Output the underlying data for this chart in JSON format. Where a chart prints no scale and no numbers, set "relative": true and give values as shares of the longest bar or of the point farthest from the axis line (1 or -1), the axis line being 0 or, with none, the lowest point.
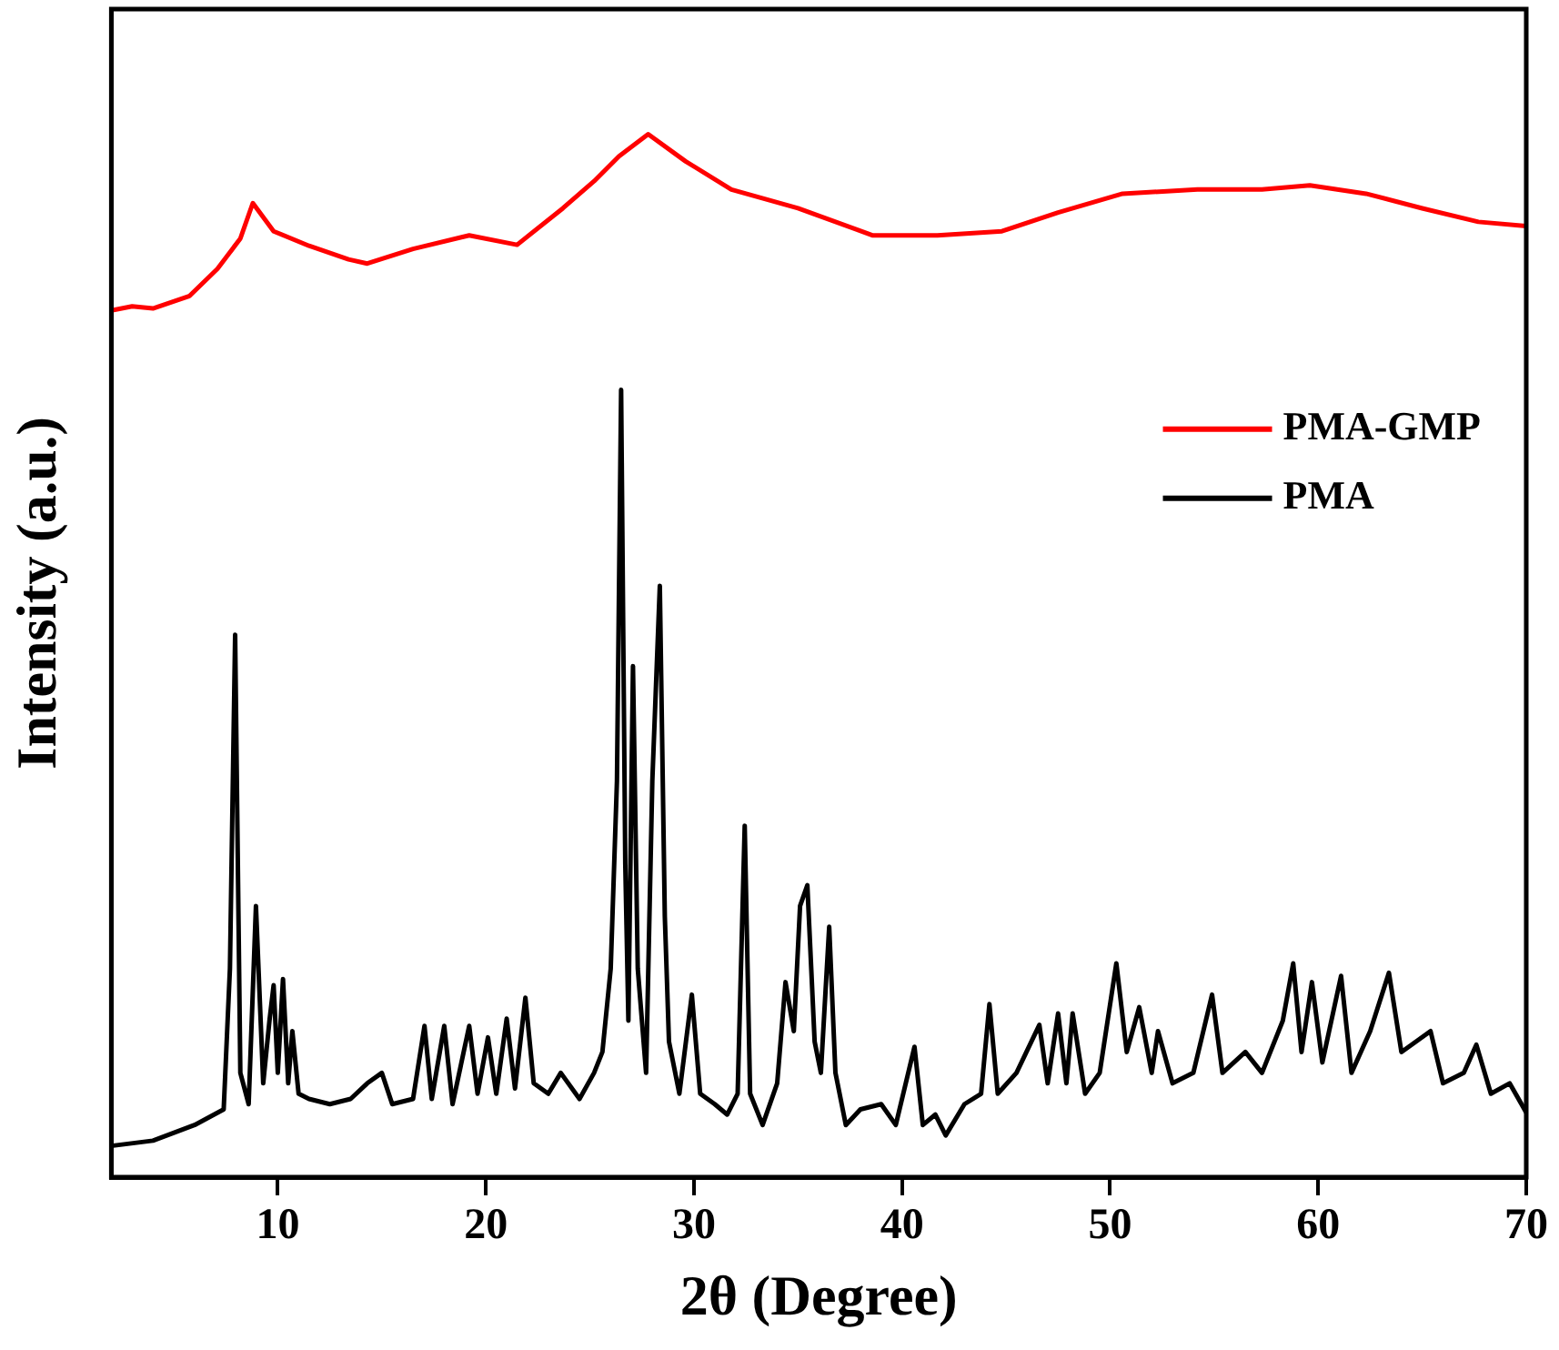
{
  "chart_data": {
    "type": "line",
    "xlabel": "2θ (Degree)",
    "ylabel": "Intensity (a.u.)",
    "relative": true,
    "xlim": [
      2,
      70
    ],
    "xticks": [
      10,
      20,
      30,
      40,
      50,
      60,
      70
    ],
    "legend": "top right",
    "grid": false,
    "marker": "none",
    "line_style": "solid",
    "series": [
      {
        "name": "PMA-GMP",
        "color": "#ff0000",
        "x": [
          2,
          3,
          4,
          5.76,
          7.1,
          8.2,
          8.8,
          9.8,
          11.5,
          13.4,
          14.3,
          16.5,
          19.2,
          21.5,
          23.7,
          25.2,
          26.4,
          27.8,
          29.6,
          31.8,
          35,
          38.6,
          41.7,
          44.8,
          47.5,
          50.6,
          54.2,
          57.3,
          59.6,
          62.3,
          65,
          67.7,
          70
        ],
        "values": [
          0.831,
          0.835,
          0.833,
          0.845,
          0.871,
          0.9,
          0.934,
          0.907,
          0.893,
          0.88,
          0.876,
          0.89,
          0.903,
          0.894,
          0.929,
          0.955,
          0.979,
          1,
          0.974,
          0.947,
          0.929,
          0.903,
          0.903,
          0.907,
          0.925,
          0.943,
          0.947,
          0.947,
          0.951,
          0.943,
          0.929,
          0.916,
          0.912
        ]
      },
      {
        "name": "PMA",
        "color": "#000000",
        "x": [
          2,
          4,
          6,
          7.4,
          7.7,
          7.95,
          8.2,
          8.6,
          8.95,
          9.3,
          9.6,
          9.8,
          10.0,
          10.25,
          10.5,
          10.7,
          11,
          11.5,
          12.5,
          13.5,
          14.3,
          15,
          15.5,
          16.5,
          17.05,
          17.4,
          18,
          18.4,
          19.2,
          19.6,
          20.1,
          20.5,
          21,
          21.4,
          21.9,
          22.3,
          23,
          23.6,
          24.5,
          25.2,
          25.6,
          26.0,
          26.3,
          26.5,
          26.7,
          26.85,
          27.07,
          27.3,
          27.7,
          28.0,
          28.36,
          28.6,
          28.8,
          29.3,
          29.9,
          30.3,
          31,
          31.6,
          32.1,
          32.44,
          32.7,
          33.3,
          34,
          34.4,
          34.8,
          35.1,
          35.45,
          35.8,
          36.1,
          36.5,
          36.8,
          37.3,
          38,
          39,
          39.7,
          40.6,
          41,
          41.6,
          42.1,
          43,
          43.8,
          44.2,
          44.6,
          45.5,
          46.6,
          47,
          47.5,
          47.9,
          48.2,
          48.8,
          49.5,
          50.3,
          50.8,
          51.4,
          52,
          52.3,
          53,
          54,
          54.9,
          55.4,
          56.5,
          57.3,
          58.3,
          58.8,
          59.2,
          59.7,
          60.2,
          61.1,
          61.6,
          62.5,
          63.4,
          64,
          65.4,
          66,
          67,
          67.6,
          68.3,
          69.2,
          70
        ],
        "values": [
          0.03,
          0.035,
          0.05,
          0.065,
          0.2,
          0.52,
          0.1,
          0.07,
          0.26,
          0.09,
          0.15,
          0.184,
          0.1,
          0.19,
          0.09,
          0.14,
          0.08,
          0.075,
          0.07,
          0.075,
          0.09,
          0.1,
          0.07,
          0.075,
          0.145,
          0.075,
          0.145,
          0.07,
          0.145,
          0.08,
          0.134,
          0.08,
          0.152,
          0.085,
          0.172,
          0.09,
          0.08,
          0.1,
          0.075,
          0.1,
          0.12,
          0.2,
          0.38,
          0.755,
          0.3,
          0.15,
          0.49,
          0.2,
          0.1,
          0.38,
          0.567,
          0.25,
          0.13,
          0.08,
          0.175,
          0.08,
          0.07,
          0.06,
          0.08,
          0.337,
          0.08,
          0.05,
          0.09,
          0.187,
          0.14,
          0.26,
          0.28,
          0.13,
          0.1,
          0.24,
          0.1,
          0.05,
          0.065,
          0.07,
          0.05,
          0.125,
          0.05,
          0.06,
          0.04,
          0.07,
          0.08,
          0.166,
          0.08,
          0.1,
          0.146,
          0.09,
          0.157,
          0.09,
          0.157,
          0.08,
          0.1,
          0.205,
          0.12,
          0.163,
          0.1,
          0.14,
          0.09,
          0.1,
          0.175,
          0.1,
          0.12,
          0.1,
          0.15,
          0.205,
          0.12,
          0.187,
          0.11,
          0.193,
          0.1,
          0.14,
          0.196,
          0.12,
          0.14,
          0.09,
          0.1,
          0.127,
          0.08,
          0.09,
          0.062
        ]
      }
    ]
  }
}
